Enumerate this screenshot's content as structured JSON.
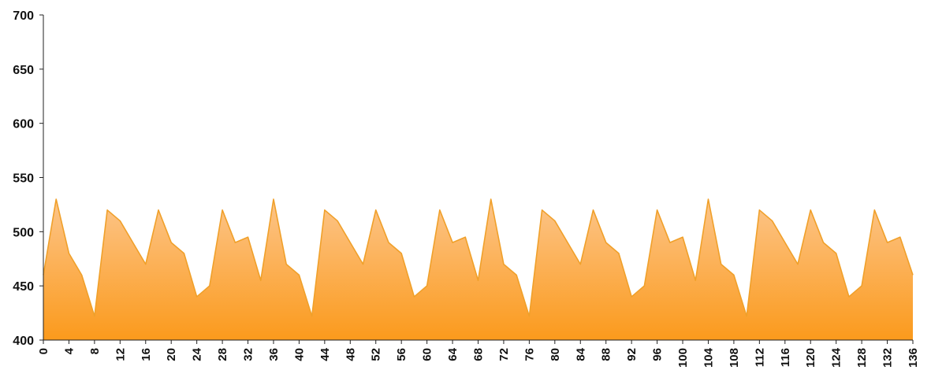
{
  "chart_data": {
    "type": "area",
    "title": "",
    "xlabel": "",
    "ylabel": "",
    "xlim": [
      0,
      136
    ],
    "ylim": [
      400,
      700
    ],
    "y_ticks": [
      400,
      450,
      500,
      550,
      600,
      650,
      700
    ],
    "x_ticks": [
      0,
      4,
      8,
      12,
      16,
      20,
      24,
      28,
      32,
      36,
      40,
      44,
      48,
      52,
      56,
      60,
      64,
      68,
      72,
      76,
      80,
      84,
      88,
      92,
      96,
      100,
      104,
      108,
      112,
      116,
      120,
      124,
      128,
      132,
      136
    ],
    "grid": false,
    "legend": "none",
    "colors": {
      "fill_top": "#fcc58a",
      "fill_bottom": "#fb9a1c",
      "line": "#f0a02a"
    },
    "series": [
      {
        "x": [
          0,
          2,
          4,
          6,
          8,
          10,
          12,
          14,
          16,
          18,
          20,
          22,
          24,
          26,
          28,
          30,
          32,
          34,
          36,
          38,
          40,
          42,
          44,
          46,
          48,
          50,
          52,
          54,
          56,
          58,
          60,
          62,
          64,
          66,
          68,
          70,
          72,
          74,
          76,
          78,
          80,
          82,
          84,
          86,
          88,
          90,
          92,
          94,
          96,
          98,
          100,
          102,
          104,
          106,
          108,
          110,
          112,
          114,
          116,
          118,
          120,
          122,
          124,
          126,
          128,
          130,
          132,
          134,
          136
        ],
        "values": [
          460,
          530,
          480,
          460,
          422,
          520,
          510,
          490,
          470,
          520,
          490,
          480,
          440,
          450,
          520,
          490,
          495,
          455,
          530,
          470,
          460,
          422,
          520,
          510,
          490,
          470,
          520,
          490,
          480,
          440,
          450,
          520,
          490,
          495,
          455,
          530,
          470,
          460,
          422,
          520,
          510,
          490,
          470,
          520,
          490,
          480,
          440,
          450,
          520,
          490,
          495,
          455,
          530,
          470,
          460,
          422,
          520,
          510,
          490,
          470,
          520,
          490,
          480,
          440,
          450,
          520,
          490,
          495,
          460
        ]
      }
    ]
  }
}
